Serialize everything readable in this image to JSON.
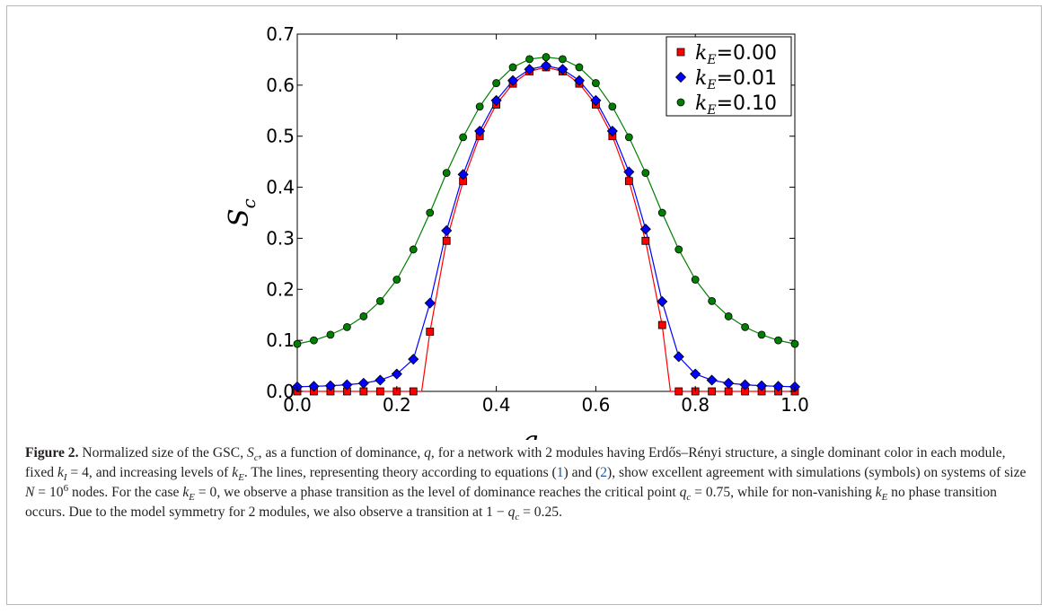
{
  "chart_data": {
    "type": "line",
    "title": "",
    "xlabel": "q",
    "ylabel": "S",
    "ylabel_sub": "c",
    "xlim": [
      0.0,
      1.0
    ],
    "ylim": [
      0.0,
      0.7
    ],
    "xticks": [
      "0.0",
      "0.2",
      "0.4",
      "0.6",
      "0.8",
      "1.0"
    ],
    "yticks": [
      "0.0",
      "0.1",
      "0.2",
      "0.3",
      "0.4",
      "0.5",
      "0.6",
      "0.7"
    ],
    "grid": false,
    "legend_position": "top-right",
    "x": [
      0.0,
      0.0333,
      0.0667,
      0.1,
      0.1333,
      0.1667,
      0.2,
      0.2333,
      0.2667,
      0.3,
      0.3333,
      0.3667,
      0.4,
      0.4333,
      0.4667,
      0.5,
      0.5333,
      0.5667,
      0.6,
      0.6333,
      0.6667,
      0.7,
      0.7333,
      0.7667,
      0.8,
      0.8333,
      0.8667,
      0.9,
      0.9333,
      0.9667,
      1.0
    ],
    "series": [
      {
        "name": "k_E=0.00",
        "legend_sub": "E",
        "legend_value": "=0.00",
        "marker": "square",
        "color": "#ff0000",
        "values": [
          0.0,
          0.0,
          0.0,
          0.0,
          0.0,
          0.0,
          0.0,
          0.0,
          0.117,
          0.295,
          0.412,
          0.5,
          0.562,
          0.603,
          0.627,
          0.635,
          0.627,
          0.603,
          0.562,
          0.5,
          0.412,
          0.295,
          0.13,
          0.0,
          0.0,
          0.0,
          0.0,
          0.0,
          0.0,
          0.0,
          0.0
        ]
      },
      {
        "name": "k_E=0.01",
        "legend_sub": "E",
        "legend_value": "=0.01",
        "marker": "diamond",
        "color": "#0000ff",
        "values": [
          0.009,
          0.01,
          0.011,
          0.013,
          0.016,
          0.022,
          0.034,
          0.063,
          0.173,
          0.315,
          0.425,
          0.51,
          0.57,
          0.609,
          0.631,
          0.638,
          0.631,
          0.609,
          0.57,
          0.51,
          0.43,
          0.318,
          0.176,
          0.068,
          0.034,
          0.022,
          0.016,
          0.013,
          0.011,
          0.01,
          0.009
        ]
      },
      {
        "name": "k_E=0.10",
        "legend_sub": "E",
        "legend_value": "=0.10",
        "marker": "circle",
        "color": "#008000",
        "values": [
          0.093,
          0.1,
          0.111,
          0.126,
          0.147,
          0.177,
          0.219,
          0.278,
          0.35,
          0.428,
          0.498,
          0.558,
          0.604,
          0.635,
          0.651,
          0.655,
          0.651,
          0.635,
          0.604,
          0.558,
          0.498,
          0.428,
          0.35,
          0.278,
          0.219,
          0.177,
          0.147,
          0.126,
          0.111,
          0.1,
          0.093
        ]
      }
    ]
  },
  "caption": {
    "label": "Figure 2.",
    "segments": [
      {
        "t": "Normalized size of the GSC, "
      },
      {
        "t": "S",
        "cls": "math"
      },
      {
        "t": "c",
        "sub": true,
        "cls": "math"
      },
      {
        "t": ", as a function of dominance, "
      },
      {
        "t": "q",
        "cls": "math"
      },
      {
        "t": ", for a network with 2 modules having Erdős–Rényi structure, a single dominant color in each module, fixed "
      },
      {
        "t": "k",
        "cls": "math"
      },
      {
        "t": "I",
        "sub": true,
        "cls": "math"
      },
      {
        "t": " = 4, and increasing levels of "
      },
      {
        "t": "k",
        "cls": "math"
      },
      {
        "t": "E",
        "sub": true,
        "cls": "math"
      },
      {
        "t": ". The lines, representing theory according to equations ("
      },
      {
        "t": "1",
        "cls": "link"
      },
      {
        "t": ") and ("
      },
      {
        "t": "2",
        "cls": "link"
      },
      {
        "t": "), show excellent agreement with simulations (symbols) on systems of size "
      },
      {
        "t": "N",
        "cls": "math"
      },
      {
        "t": " = 10"
      },
      {
        "t": "6",
        "sup": true
      },
      {
        "t": " nodes. For the case "
      },
      {
        "t": "k",
        "cls": "math"
      },
      {
        "t": "E",
        "sub": true,
        "cls": "math"
      },
      {
        "t": " = 0, we observe a phase transition as the level of dominance reaches the critical point "
      },
      {
        "t": "q",
        "cls": "math"
      },
      {
        "t": "c",
        "sub": true,
        "cls": "math"
      },
      {
        "t": " = 0.75, while for non-vanishing "
      },
      {
        "t": "k",
        "cls": "math"
      },
      {
        "t": "E",
        "sub": true,
        "cls": "math"
      },
      {
        "t": " no phase transition occurs. Due to the model symmetry for 2 modules, we also observe a transition at 1 − "
      },
      {
        "t": "q",
        "cls": "math"
      },
      {
        "t": "c",
        "sub": true,
        "cls": "math"
      },
      {
        "t": " = 0.25."
      }
    ]
  }
}
